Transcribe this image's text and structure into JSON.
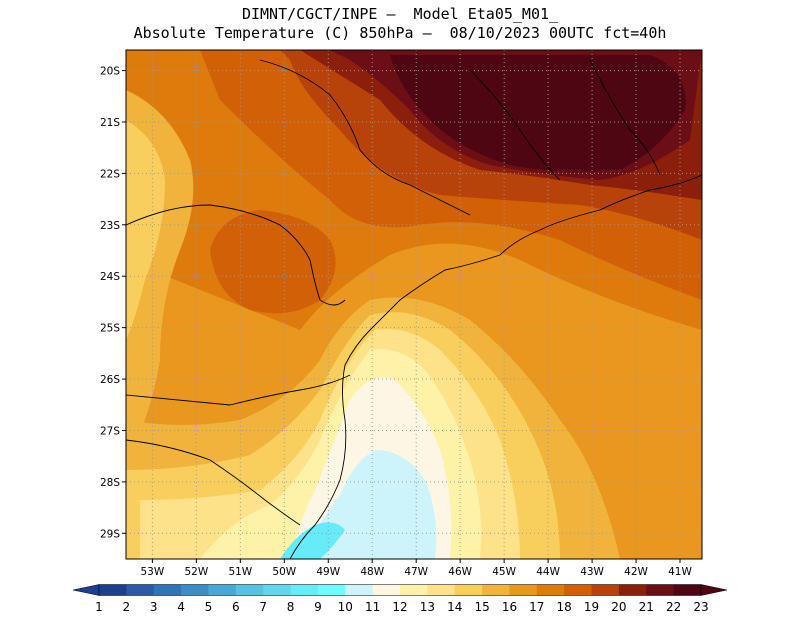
{
  "header": {
    "line1": "DIMNT/CGCT/INPE –  Model Eta05_M01_",
    "line2": "Absolute Temperature (C) 850hPa –  08/10/2023 00UTC fct=40h"
  },
  "map": {
    "lat_labels": [
      "20S",
      "21S",
      "22S",
      "23S",
      "24S",
      "25S",
      "26S",
      "27S",
      "28S",
      "29S"
    ],
    "lon_labels": [
      "53W",
      "52W",
      "51W",
      "50W",
      "49W",
      "48W",
      "47W",
      "46W",
      "45W",
      "44W",
      "43W",
      "42W",
      "41W"
    ],
    "lat_range": [
      -29.5,
      -19.6
    ],
    "lon_range": [
      -53.6,
      -40.5
    ],
    "gridlines": "dotted"
  },
  "colorbar": {
    "labels": [
      "1",
      "2",
      "3",
      "4",
      "5",
      "6",
      "7",
      "8",
      "9",
      "10",
      "11",
      "12",
      "13",
      "14",
      "15",
      "16",
      "17",
      "18",
      "19",
      "20",
      "21",
      "22",
      "23"
    ],
    "colors": [
      "#1d3f8f",
      "#1d3f8f",
      "#2a5aa8",
      "#2f73b8",
      "#3a8ec8",
      "#48a9d8",
      "#56c3e3",
      "#5fd8ee",
      "#66ecf8",
      "#6ffbfd",
      "#cdf4fb",
      "#fdf6e4",
      "#fdf2a8",
      "#fde28a",
      "#f8cf5d",
      "#f0b43c",
      "#e9971f",
      "#de7b0d",
      "#d16007",
      "#b8430a",
      "#8c1f0c",
      "#6b0e16",
      "#4d0612"
    ],
    "range": [
      1,
      23
    ]
  },
  "fields": {
    "cold_blue": "#cdf4fb",
    "cyan": "#66ecf8",
    "peak": "#4d0612"
  }
}
